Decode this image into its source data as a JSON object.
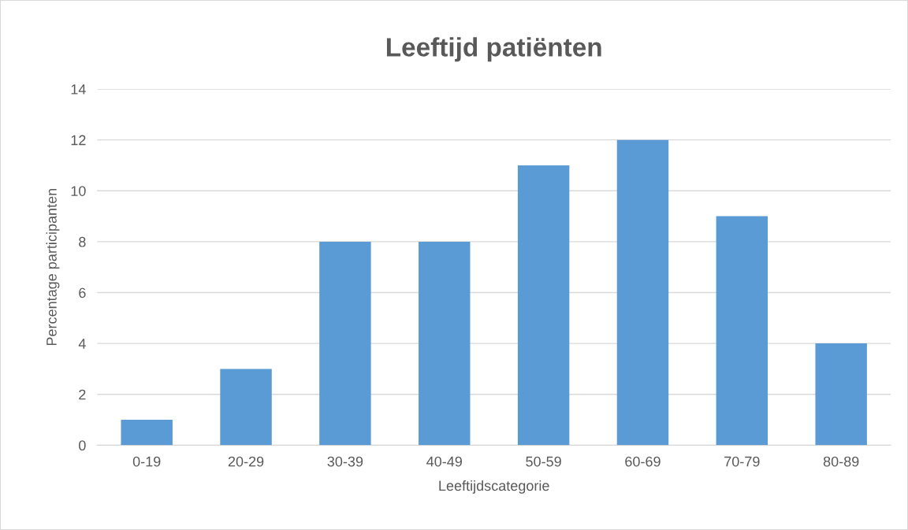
{
  "chart_data": {
    "type": "bar",
    "title": "Leeftijd patiënten",
    "xlabel": "Leeftijdscategorie",
    "ylabel": "Percentage participanten",
    "categories": [
      "0-19",
      "20-29",
      "30-39",
      "40-49",
      "50-59",
      "60-69",
      "70-79",
      "80-89"
    ],
    "values": [
      1,
      3,
      8,
      8,
      11,
      12,
      9,
      4
    ],
    "color": "#5b9bd5",
    "ylim": [
      0,
      14
    ],
    "yticks": [
      0,
      2,
      4,
      6,
      8,
      10,
      12,
      14
    ],
    "grid": "y",
    "legend": false
  }
}
